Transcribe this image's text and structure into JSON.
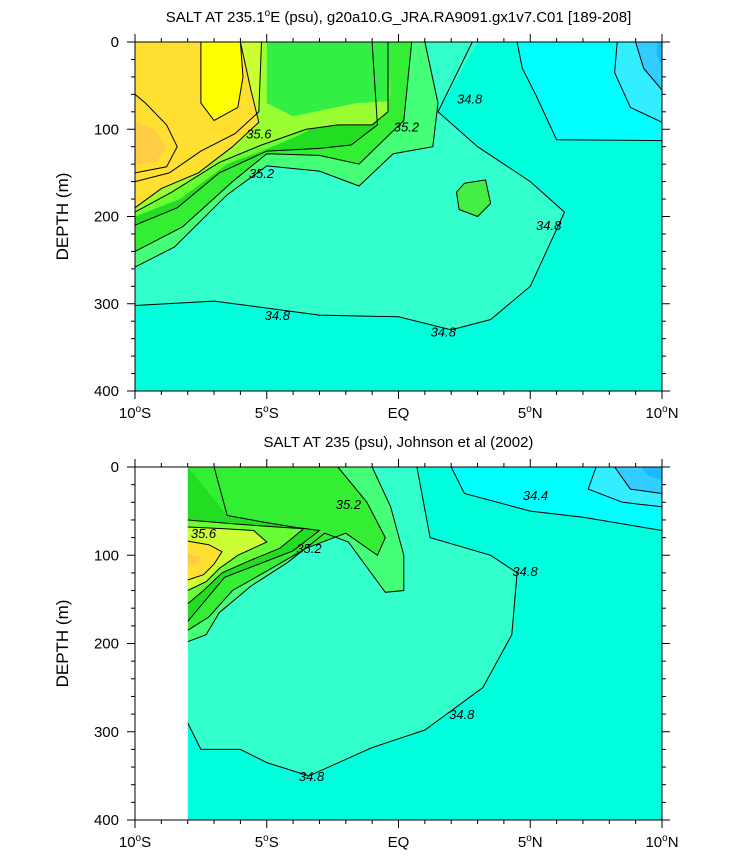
{
  "chart_data": [
    {
      "type": "contour",
      "title": "SALT AT 235.1°E (psu), g20a10.G_JRA.RA9091.gx1v7.C01 [189-208]",
      "title_parts": [
        "SALT AT 235.1",
        "o",
        "E (psu), g20a10.G_JRA.RA9091.gx1v7.C01 [189-208]"
      ],
      "ylabel": "DEPTH (m)",
      "xlim": [
        -10,
        10
      ],
      "ylim": [
        400,
        0
      ],
      "x_ticks": [
        {
          "value": -10,
          "label": "10°S",
          "num": "10",
          "hemi": "S"
        },
        {
          "value": -5,
          "label": "5°S",
          "num": "5",
          "hemi": "S"
        },
        {
          "value": 0,
          "label": "EQ",
          "num": "EQ",
          "hemi": ""
        },
        {
          "value": 5,
          "label": "5°N",
          "num": "5",
          "hemi": "N"
        },
        {
          "value": 10,
          "label": "10°N",
          "num": "10",
          "hemi": "N"
        }
      ],
      "y_ticks": [
        0,
        100,
        200,
        300,
        400
      ],
      "contour_labels": [
        {
          "text": "35.6",
          "x": -5.3,
          "y": 105
        },
        {
          "text": "35.2",
          "x": -5.2,
          "y": 150
        },
        {
          "text": "35.2",
          "x": 0.3,
          "y": 97
        },
        {
          "text": "34.8",
          "x": 2.7,
          "y": 65
        },
        {
          "text": "34.8",
          "x": 5.7,
          "y": 210
        },
        {
          "text": "34.8",
          "x": -4.6,
          "y": 313
        },
        {
          "text": "34.8",
          "x": 1.7,
          "y": 332
        }
      ]
    },
    {
      "type": "contour",
      "title": "SALT AT 235 (psu), Johnson et al (2002)",
      "ylabel": "DEPTH (m)",
      "xlim": [
        -10,
        10
      ],
      "ylim": [
        400,
        0
      ],
      "data_xmin": -8,
      "x_ticks": [
        {
          "value": -10,
          "label": "10°S",
          "num": "10",
          "hemi": "S"
        },
        {
          "value": -5,
          "label": "5°S",
          "num": "5",
          "hemi": "S"
        },
        {
          "value": 0,
          "label": "EQ",
          "num": "EQ",
          "hemi": ""
        },
        {
          "value": 5,
          "label": "5°N",
          "num": "5",
          "hemi": "N"
        },
        {
          "value": 10,
          "label": "10°N",
          "num": "10",
          "hemi": "N"
        }
      ],
      "y_ticks": [
        0,
        100,
        200,
        300,
        400
      ],
      "contour_labels": [
        {
          "text": "35.6",
          "x": -7.4,
          "y": 75
        },
        {
          "text": "35.2",
          "x": -1.9,
          "y": 42
        },
        {
          "text": "35.2",
          "x": -3.4,
          "y": 92
        },
        {
          "text": "34.4",
          "x": 5.2,
          "y": 32
        },
        {
          "text": "34.8",
          "x": 4.8,
          "y": 118
        },
        {
          "text": "34.8",
          "x": 2.4,
          "y": 280
        },
        {
          "text": "34.8",
          "x": -3.3,
          "y": 350
        }
      ]
    }
  ]
}
